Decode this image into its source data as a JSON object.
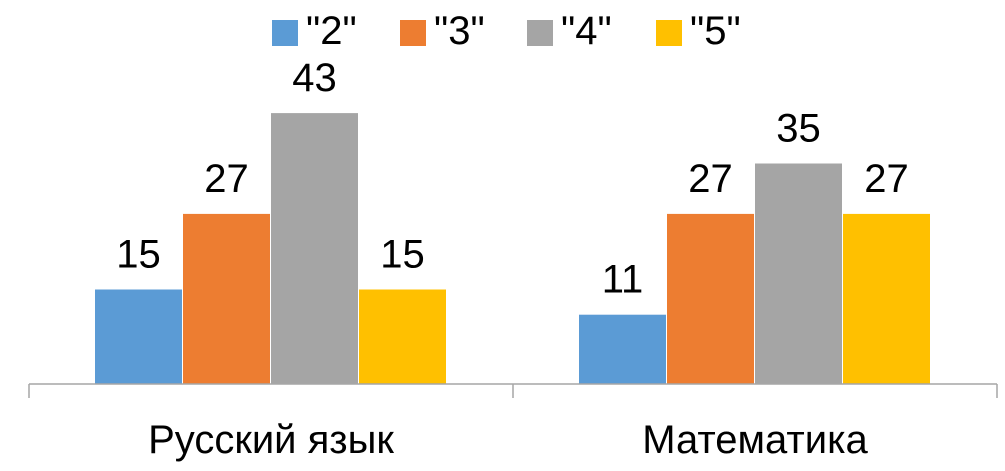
{
  "chart_data": {
    "type": "bar",
    "categories": [
      "Русский язык",
      "Математика"
    ],
    "series": [
      {
        "name": "\"2\"",
        "values": [
          15,
          11
        ]
      },
      {
        "name": "\"3\"",
        "values": [
          27,
          27
        ]
      },
      {
        "name": "\"4\"",
        "values": [
          43,
          35
        ]
      },
      {
        "name": "\"5\"",
        "values": [
          15,
          27
        ]
      }
    ],
    "colors": [
      "#5b9bd5",
      "#ed7d31",
      "#a5a5a5",
      "#ffc000"
    ],
    "title": "",
    "xlabel": "",
    "ylabel": "",
    "ylim": [
      0,
      43
    ],
    "grid": false,
    "legend": "top",
    "data_labels": true
  }
}
